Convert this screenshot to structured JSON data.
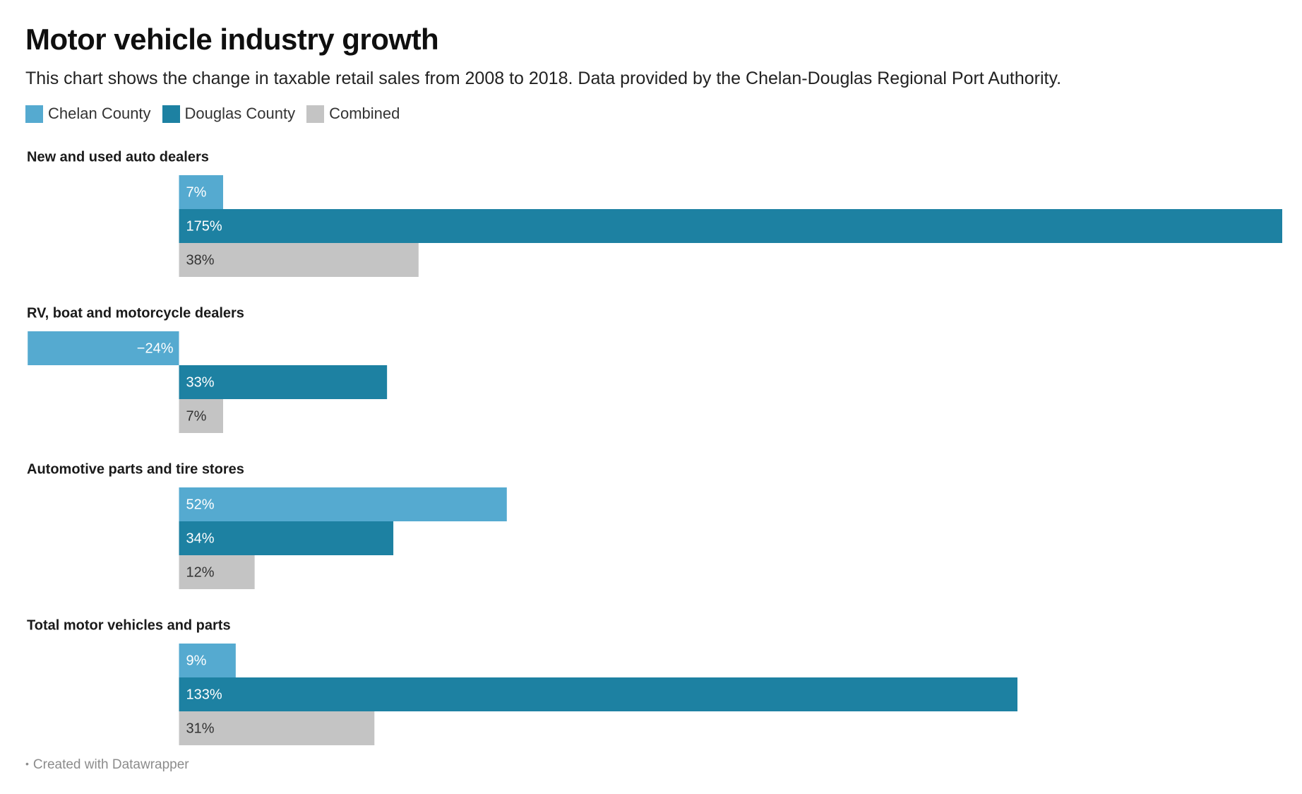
{
  "title": "Motor vehicle industry growth",
  "subtitle": "This chart shows the change in taxable retail sales from 2008 to 2018. Data provided by the Chelan-Douglas Regional Port Authority.",
  "legend": [
    {
      "label": "Chelan County",
      "color": "#55aad0"
    },
    {
      "label": "Douglas County",
      "color": "#1d81a2"
    },
    {
      "label": "Combined",
      "color": "#c4c4c4"
    }
  ],
  "footer": "Created with Datawrapper",
  "chart_data": {
    "type": "bar",
    "orientation": "horizontal",
    "grouped": true,
    "categories": [
      "New and used auto dealers",
      "RV, boat and motorcycle dealers",
      "Automotive parts and tire stores",
      "Total motor vehicles and parts"
    ],
    "series": [
      {
        "name": "Chelan County",
        "color": "#55aad0",
        "label_color": "#ffffff",
        "values": [
          7,
          -24,
          52,
          9
        ],
        "labels": [
          "7%",
          "−24%",
          "52%",
          "9%"
        ]
      },
      {
        "name": "Douglas County",
        "color": "#1d81a2",
        "label_color": "#ffffff",
        "values": [
          175,
          33,
          34,
          133
        ],
        "labels": [
          "175%",
          "33%",
          "34%",
          "133%"
        ]
      },
      {
        "name": "Combined",
        "color": "#c4c4c4",
        "label_color": "#333333",
        "values": [
          38,
          7,
          12,
          31
        ],
        "labels": [
          "38%",
          "7%",
          "12%",
          "31%"
        ]
      }
    ],
    "unit": "%",
    "xlim": [
      -24,
      175
    ],
    "grid": false,
    "legend_position": "top-left"
  }
}
